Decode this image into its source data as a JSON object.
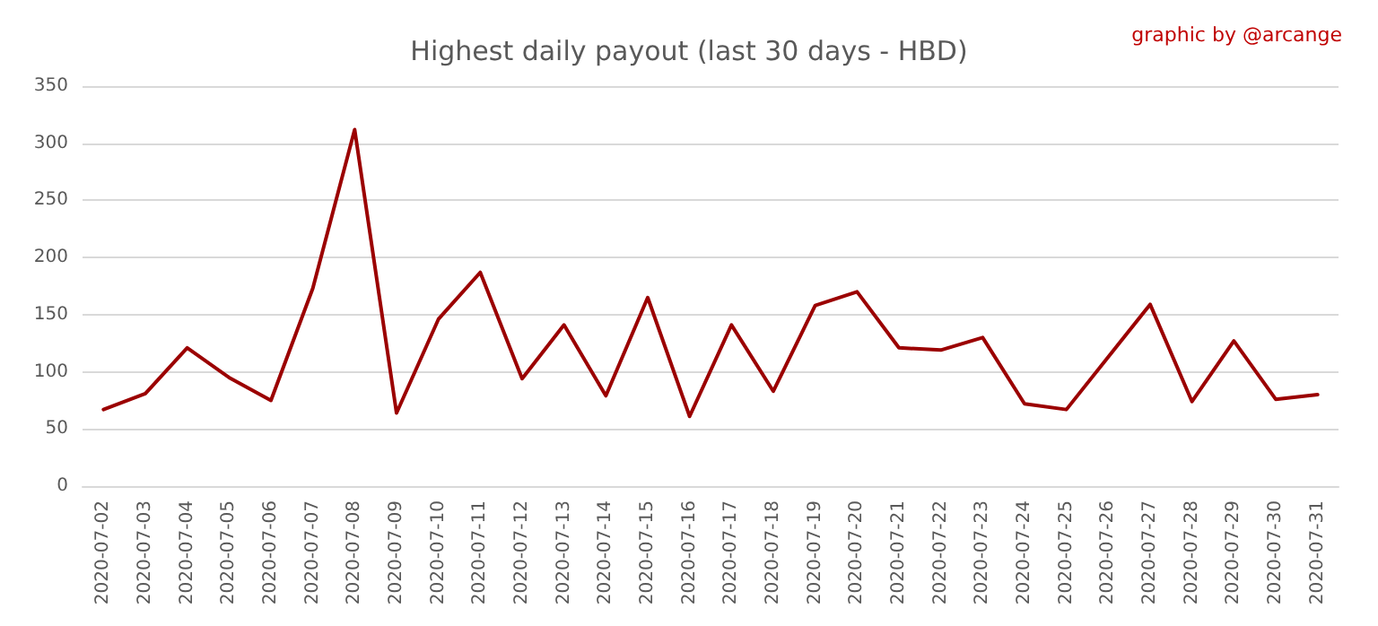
{
  "chart_data": {
    "type": "line",
    "title": "Highest daily payout (last 30 days - HBD)",
    "annotations": [
      "graphic by @arcange"
    ],
    "categories": [
      "2020-07-02",
      "2020-07-03",
      "2020-07-04",
      "2020-07-05",
      "2020-07-06",
      "2020-07-07",
      "2020-07-08",
      "2020-07-09",
      "2020-07-10",
      "2020-07-11",
      "2020-07-12",
      "2020-07-13",
      "2020-07-14",
      "2020-07-15",
      "2020-07-16",
      "2020-07-17",
      "2020-07-18",
      "2020-07-19",
      "2020-07-20",
      "2020-07-21",
      "2020-07-22",
      "2020-07-23",
      "2020-07-24",
      "2020-07-25",
      "2020-07-26",
      "2020-07-27",
      "2020-07-28",
      "2020-07-29",
      "2020-07-30",
      "2020-07-31"
    ],
    "series": [
      {
        "color": "#9b0000",
        "values": [
          67,
          81,
          121,
          95,
          75,
          173,
          312,
          64,
          146,
          187,
          94,
          141,
          79,
          165,
          61,
          141,
          83,
          158,
          170,
          121,
          119,
          130,
          72,
          67,
          113,
          159,
          74,
          127,
          76,
          80
        ]
      }
    ],
    "ylim": [
      0,
      350
    ],
    "yticks": [
      0,
      50,
      100,
      150,
      200,
      250,
      300,
      350
    ],
    "grid": "y",
    "marker": "none",
    "line_style": "solid"
  }
}
